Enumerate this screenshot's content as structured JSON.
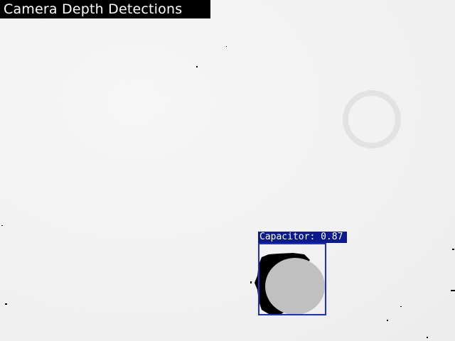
{
  "window": {
    "title": "Camera Depth Detections"
  },
  "detections": [
    {
      "class_name": "Capacitor",
      "confidence": 0.87,
      "label": "Capacitor: 0.87",
      "box_color": "#1a2fd0",
      "label_bg_color": "#0b1a8c"
    }
  ],
  "colors": {
    "background": "#f2f2f2",
    "object_fill": "#c0c0c0",
    "shadow": "#000000"
  }
}
